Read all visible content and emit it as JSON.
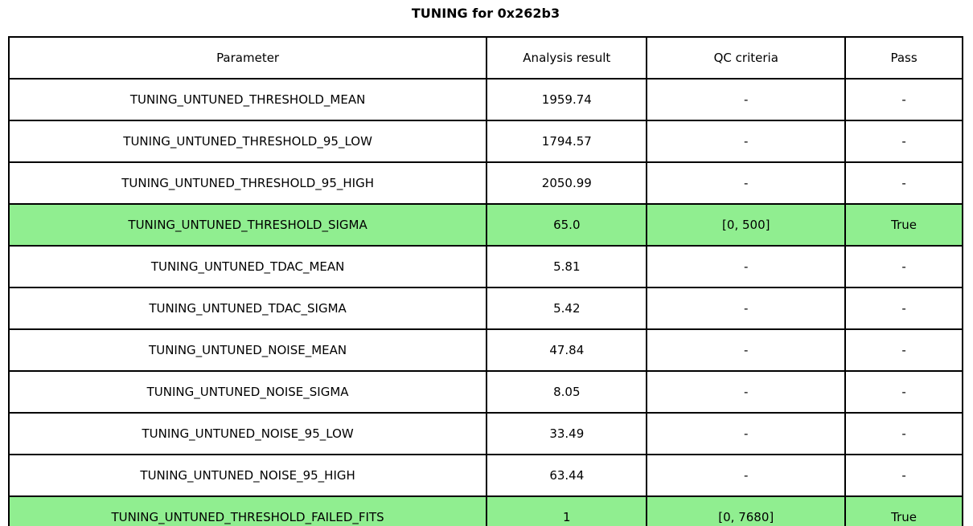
{
  "title": "TUNING for 0x262b3",
  "colors": {
    "highlight_green": "#90EE90",
    "border": "#000000",
    "background": "#ffffff",
    "text": "#000000"
  },
  "table": {
    "columns": [
      "Parameter",
      "Analysis result",
      "QC criteria",
      "Pass"
    ],
    "rows": [
      {
        "parameter": "TUNING_UNTUNED_THRESHOLD_MEAN",
        "analysis_result": "1959.74",
        "qc_criteria": "-",
        "pass": "-",
        "highlighted": false
      },
      {
        "parameter": "TUNING_UNTUNED_THRESHOLD_95_LOW",
        "analysis_result": "1794.57",
        "qc_criteria": "-",
        "pass": "-",
        "highlighted": false
      },
      {
        "parameter": "TUNING_UNTUNED_THRESHOLD_95_HIGH",
        "analysis_result": "2050.99",
        "qc_criteria": "-",
        "pass": "-",
        "highlighted": false
      },
      {
        "parameter": "TUNING_UNTUNED_THRESHOLD_SIGMA",
        "analysis_result": "65.0",
        "qc_criteria": "[0, 500]",
        "pass": "True",
        "highlighted": true
      },
      {
        "parameter": "TUNING_UNTUNED_TDAC_MEAN",
        "analysis_result": "5.81",
        "qc_criteria": "-",
        "pass": "-",
        "highlighted": false
      },
      {
        "parameter": "TUNING_UNTUNED_TDAC_SIGMA",
        "analysis_result": "5.42",
        "qc_criteria": "-",
        "pass": "-",
        "highlighted": false
      },
      {
        "parameter": "TUNING_UNTUNED_NOISE_MEAN",
        "analysis_result": "47.84",
        "qc_criteria": "-",
        "pass": "-",
        "highlighted": false
      },
      {
        "parameter": "TUNING_UNTUNED_NOISE_SIGMA",
        "analysis_result": "8.05",
        "qc_criteria": "-",
        "pass": "-",
        "highlighted": false
      },
      {
        "parameter": "TUNING_UNTUNED_NOISE_95_LOW",
        "analysis_result": "33.49",
        "qc_criteria": "-",
        "pass": "-",
        "highlighted": false
      },
      {
        "parameter": "TUNING_UNTUNED_NOISE_95_HIGH",
        "analysis_result": "63.44",
        "qc_criteria": "-",
        "pass": "-",
        "highlighted": false
      },
      {
        "parameter": "TUNING_UNTUNED_THRESHOLD_FAILED_FITS",
        "analysis_result": "1",
        "qc_criteria": "[0, 7680]",
        "pass": "True",
        "highlighted": true
      }
    ]
  }
}
